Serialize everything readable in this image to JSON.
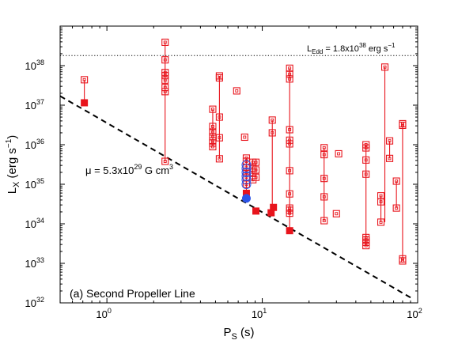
{
  "chart_data": {
    "type": "scatter",
    "title": "",
    "xlabel": {
      "main": "P",
      "sub": "S",
      "unit": " (s)"
    },
    "ylabel": {
      "main": "L",
      "sub": "X",
      "unit_pre": " (erg s",
      "unit_sup": "−1",
      "unit_post": ")"
    },
    "x_scale": "log",
    "y_scale": "log",
    "xlim": [
      0.5,
      100
    ],
    "ylim": [
      1e+32,
      1e+39
    ],
    "x_ticks": [
      {
        "value": 1,
        "base": "10",
        "exp": "0"
      },
      {
        "value": 10,
        "base": "10",
        "exp": "1"
      },
      {
        "value": 100,
        "base": "10",
        "exp": "2"
      }
    ],
    "y_ticks": [
      {
        "value": 1e+32,
        "base": "10",
        "exp": "32"
      },
      {
        "value": 1e+33,
        "base": "10",
        "exp": "33"
      },
      {
        "value": 1e+34,
        "base": "10",
        "exp": "34"
      },
      {
        "value": 1e+35,
        "base": "10",
        "exp": "35"
      },
      {
        "value": 1e+36,
        "base": "10",
        "exp": "36"
      },
      {
        "value": 1e+37,
        "base": "10",
        "exp": "37"
      },
      {
        "value": 1e+38,
        "base": "10",
        "exp": "38"
      }
    ],
    "eddington": {
      "value": 1.8e+38,
      "label_main": "L",
      "label_sub": "Edd",
      "label_rest": " = 1.8x10",
      "label_sup": "38",
      "label_unit": " erg s",
      "label_unit_sup": "−1"
    },
    "propeller_line": {
      "points": [
        [
          0.5,
          1.7e+37
        ],
        [
          92,
          1.3e+32
        ]
      ],
      "label_pre": "μ = 5.3x10",
      "label_sup": "29",
      "label_post": " G cm",
      "label_sup2": "3"
    },
    "panel_label": "(a) Second Propeller Line",
    "colors": {
      "red": "#e8141c",
      "blue": "#2b54e8",
      "black": "#000000"
    },
    "sources": [
      {
        "p": 0.716,
        "lmin": 1.15e+37,
        "open": [
          4.4e+37
        ]
      },
      {
        "p": 2.37,
        "lmin": 3.8e+35,
        "open": [
          3.8e+35,
          2.2e+37,
          2.8e+37,
          4.3e+37,
          5.6e+37,
          6.7e+37,
          1.4e+38,
          3.9e+38
        ]
      },
      {
        "p": 4.8,
        "lmin": 8.9e+35,
        "open": [
          8.9e+35,
          1.1e+36,
          1.25e+36,
          1.6e+36,
          2.1e+36,
          2.9e+36,
          7.9e+36
        ]
      },
      {
        "p": 5.3,
        "lmin": 4.4e+35,
        "open": [
          4.4e+35,
          1.5e+36,
          5e+36,
          4.9e+37,
          5.5e+37
        ]
      },
      {
        "p": 6.85,
        "lmin": null,
        "open": [
          2.3e+37
        ]
      },
      {
        "p": 7.7,
        "lmin": null,
        "open": [
          1.55e+36
        ]
      },
      {
        "p": 7.9,
        "lmin": 5.9e+34,
        "open": [
          1e+35,
          1.5e+35,
          2e+35,
          2.7e+35,
          3.8e+35,
          4.6e+35
        ]
      },
      {
        "p": 8.7,
        "lmin": 4e+34,
        "open": [
          1.3e+35,
          2e+35,
          2.6e+35,
          3.6e+35
        ]
      },
      {
        "p": 9.1,
        "lmin": 2.1e+34,
        "open": [
          1.5e+35,
          2.3e+35,
          3.6e+35
        ]
      },
      {
        "p": 11.6,
        "lmin": 2.5e+34,
        "open": [
          2e+36,
          4.2e+36
        ]
      },
      {
        "p": 15.0,
        "lmin": 6.7e+33,
        "open": [
          1.85e+34,
          2.2e+34,
          2.5e+34,
          5.7e+34,
          2.2e+35,
          1.05e+36,
          1.3e+36,
          2.4e+36,
          4.6e+37,
          6.1e+37,
          8.6e+37
        ]
      },
      {
        "p": 25.0,
        "lmin": 1.2e+34,
        "open": [
          1.2e+34,
          4.8e+34,
          1.4e+35,
          5.6e+35,
          8.4e+35
        ]
      },
      {
        "p": 30.0,
        "lmin": null,
        "open": [
          1.8e+34
        ]
      },
      {
        "p": 31.0,
        "lmin": null,
        "open": [
          5.9e+35
        ]
      },
      {
        "p": 46.5,
        "lmin": 2.8e+33,
        "open": [
          2.8e+33,
          3.4e+33,
          3.9e+33,
          4.5e+33,
          1.8e+35,
          4.1e+35,
          8.3e+35,
          1e+36
        ]
      },
      {
        "p": 58.0,
        "lmin": 1.1e+34,
        "open": [
          1.1e+34,
          3.6e+34,
          5.1e+34
        ]
      },
      {
        "p": 61.5,
        "lmin": null,
        "open": [
          9.2e+37
        ]
      },
      {
        "p": 66.0,
        "lmin": 1.25e+36,
        "open": [
          4.5e+35,
          1.25e+36
        ]
      },
      {
        "p": 73.0,
        "lmin": 2.5e+34,
        "open": [
          2.5e+34,
          1.2e+35
        ]
      },
      {
        "p": 80.0,
        "lmin": 1.15e+33,
        "open": [
          1.15e+33,
          1.3e+33,
          3.1e+36,
          3.4e+36
        ]
      }
    ],
    "vertical_segments": [
      [
        0.716,
        1.15e+37,
        4.4e+37
      ],
      [
        2.37,
        3.8e+35,
        3.9e+38
      ],
      [
        4.8,
        8.9e+35,
        7.9e+36
      ],
      [
        5.3,
        4.4e+35,
        5.5e+37
      ],
      [
        7.9,
        5.9e+34,
        4.6e+35
      ],
      [
        11.6,
        1.9e+34,
        4.2e+36
      ],
      [
        15.0,
        6.7e+33,
        8.6e+37
      ],
      [
        25.0,
        1.2e+34,
        8.4e+35
      ],
      [
        46.5,
        2.8e+33,
        1e+36
      ],
      [
        58.0,
        1.1e+34,
        5.1e+34
      ],
      [
        61.5,
        1.1e+34,
        9.2e+37
      ],
      [
        66.0,
        4.5e+35,
        1.25e+36
      ],
      [
        73.0,
        2.5e+34,
        1.2e+35
      ],
      [
        80.0,
        1.15e+33,
        3.4e+36
      ]
    ],
    "filled_squares": [
      [
        0.716,
        1.15e+37
      ],
      [
        7.9,
        5.9e+34
      ],
      [
        9.1,
        2.1e+34
      ],
      [
        11.4,
        1.9e+34
      ],
      [
        11.8,
        2.6e+34
      ],
      [
        15.0,
        6.7e+33
      ]
    ],
    "blue_circles_open": [
      [
        7.9,
        1e+35
      ],
      [
        7.9,
        1.3e+35
      ],
      [
        7.9,
        1.6e+35
      ],
      [
        7.9,
        2e+35
      ],
      [
        7.9,
        2.5e+35
      ],
      [
        7.9,
        3.1e+35
      ]
    ],
    "blue_circle_filled": [
      7.9,
      4.4e+34
    ]
  }
}
